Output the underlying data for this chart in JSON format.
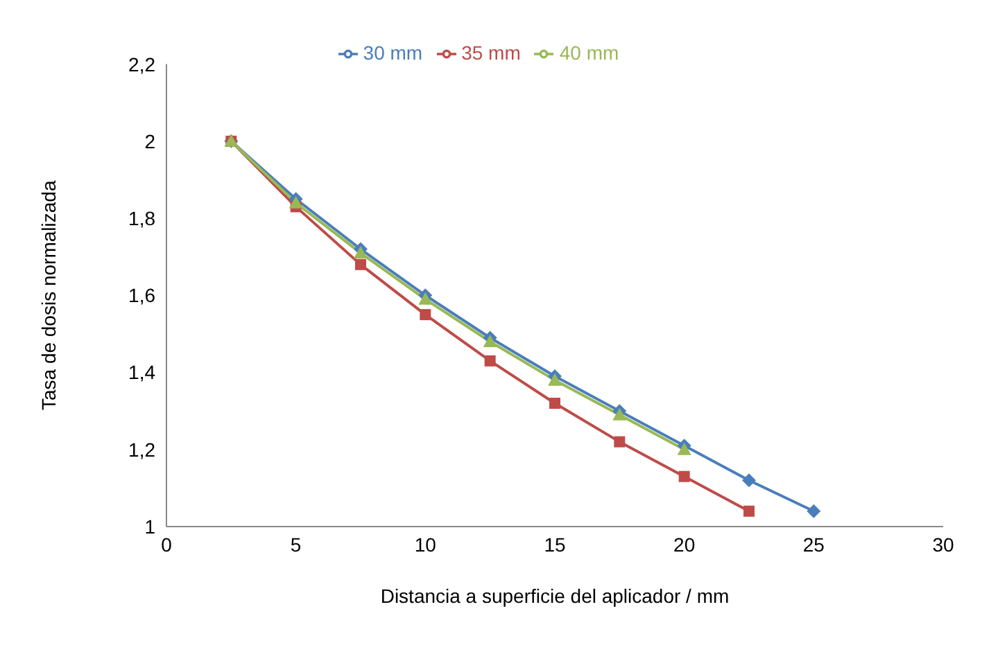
{
  "chart_data": {
    "type": "line",
    "xlabel": "Distancia a superficie del aplicador / mm",
    "ylabel": "Tasa de dosis normalizada",
    "xlim": [
      0,
      30
    ],
    "xticks": [
      0,
      5,
      10,
      15,
      20,
      25,
      30
    ],
    "ylim": [
      1,
      2.2
    ],
    "yticks": [
      1,
      {
        "value": 1.2,
        "label": "1,2"
      },
      {
        "value": 1.4,
        "label": "1,4"
      },
      {
        "value": 1.6,
        "label": "1,6"
      },
      {
        "value": 1.8,
        "label": "1,8"
      },
      2,
      {
        "value": 2.2,
        "label": "2,2"
      }
    ],
    "grid": false,
    "legend": "top",
    "series": [
      {
        "name": "30 mm",
        "color": "#4a7ebb",
        "marker": "diamond",
        "x": [
          2.5,
          5,
          7.5,
          10,
          12.5,
          15,
          17.5,
          20,
          22.5,
          25
        ],
        "values": [
          2.0,
          1.85,
          1.72,
          1.6,
          1.49,
          1.39,
          1.3,
          1.21,
          1.12,
          1.04
        ]
      },
      {
        "name": "35 mm",
        "color": "#be4b48",
        "marker": "square",
        "x": [
          2.5,
          5,
          7.5,
          10,
          12.5,
          15,
          17.5,
          20,
          22.5
        ],
        "values": [
          2.0,
          1.83,
          1.68,
          1.55,
          1.43,
          1.32,
          1.22,
          1.13,
          1.04
        ]
      },
      {
        "name": "40 mm",
        "color": "#98b954",
        "marker": "triangle",
        "x": [
          2.5,
          5,
          7.5,
          10,
          12.5,
          15,
          17.5,
          20
        ],
        "values": [
          2.0,
          1.84,
          1.71,
          1.59,
          1.48,
          1.38,
          1.29,
          1.2
        ]
      }
    ]
  }
}
